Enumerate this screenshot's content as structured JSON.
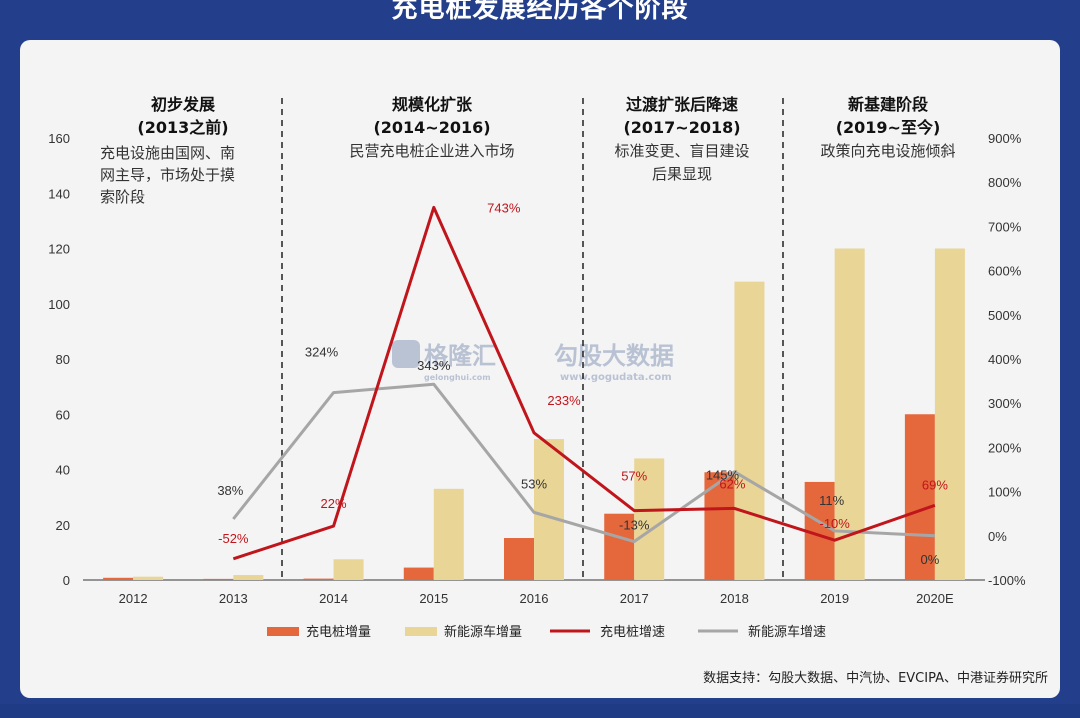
{
  "page_title": "充电桩发展经历各个阶段",
  "stages": [
    {
      "title": "初步发展",
      "period": "(2013之前)",
      "desc": [
        "充电设施由国网、南",
        "网主导，市场处于摸",
        "索阶段"
      ]
    },
    {
      "title": "规模化扩张",
      "period": "(2014~2016)",
      "desc": [
        "民营充电桩企业进入市场"
      ]
    },
    {
      "title": "过渡扩张后降速",
      "period": "(2017~2018)",
      "desc": [
        "标准变更、盲目建设",
        "后果显现"
      ]
    },
    {
      "title": "新基建阶段",
      "period": "(2019~至今)",
      "desc": [
        "政策向充电设施倾斜"
      ]
    }
  ],
  "watermark": {
    "brand1": "格隆汇",
    "brand2": "勾股大数据",
    "url": "www.gogudata.com",
    "sub": "gelonghui.com"
  },
  "source": "数据支持：勾股大数据、中汽协、EVCIPA、中港证券研究所",
  "colors": {
    "bar_charger": "#e5683c",
    "bar_nev": "#e9d596",
    "line_charger": "#c0161b",
    "line_nev": "#a6a6a6"
  },
  "chart_data": {
    "type": "bar+line",
    "categories": [
      "2012",
      "2013",
      "2014",
      "2015",
      "2016",
      "2017",
      "2018",
      "2019",
      "2020E"
    ],
    "series": [
      {
        "name": "充电桩增量",
        "type": "bar",
        "axis": "left",
        "values": [
          0.8,
          0.4,
          0.5,
          4.5,
          15.2,
          24,
          39,
          35.5,
          60
        ]
      },
      {
        "name": "新能源车增量",
        "type": "bar",
        "axis": "left",
        "values": [
          1.2,
          1.8,
          7.5,
          33,
          51,
          44,
          108,
          120,
          120
        ]
      },
      {
        "name": "充电桩增速",
        "type": "line",
        "axis": "right",
        "values": [
          null,
          -52,
          22,
          743,
          233,
          57,
          62,
          -10,
          69
        ],
        "labels": [
          "",
          "-52%",
          "22%",
          "743%",
          "233%",
          "57%",
          "62%",
          "-10%",
          "69%"
        ]
      },
      {
        "name": "新能源车增速",
        "type": "line",
        "axis": "right",
        "values": [
          null,
          38,
          324,
          343,
          53,
          -13,
          145,
          11,
          0
        ],
        "labels": [
          "",
          "38%",
          "324%",
          "343%",
          "53%",
          "-13%",
          "145%",
          "11%",
          "0%"
        ]
      }
    ],
    "left_axis": {
      "ylim": [
        0,
        160
      ],
      "ticks": [
        "0",
        "20",
        "40",
        "60",
        "80",
        "100",
        "120",
        "140",
        "160"
      ]
    },
    "right_axis": {
      "ylim": [
        -100,
        900
      ],
      "ticks": [
        "-100%",
        "0%",
        "100%",
        "200%",
        "300%",
        "400%",
        "500%",
        "600%",
        "700%",
        "800%",
        "900%"
      ]
    },
    "grid": false,
    "legend_position": "bottom"
  }
}
